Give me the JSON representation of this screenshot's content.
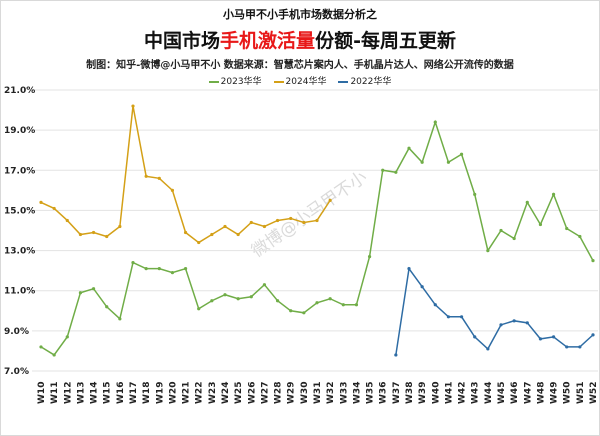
{
  "header": {
    "subtitle_top": "小马甲不小手机市场数据分析之",
    "title_prefix": "中国市场",
    "title_highlight": "手机激活量",
    "title_suffix": "份额-每周五更新",
    "credit": "制图：知乎-微博@小马甲不小  数据来源：智慧芯片案内人、手机晶片达人、网络公开流传的数据"
  },
  "watermark": "微博@小马甲不小",
  "chart_data": {
    "type": "line",
    "title": "中国市场手机激活量份额-每周五更新",
    "legend_position": "top",
    "grid": true,
    "ylim": [
      7.0,
      21.0
    ],
    "yticks": [
      "21.0%",
      "19.0%",
      "17.0%",
      "15.0%",
      "13.0%",
      "11.0%",
      "9.0%",
      "7.0%"
    ],
    "categories": [
      "W10",
      "W11",
      "W12",
      "W13",
      "W14",
      "W15",
      "W16",
      "W17",
      "W18",
      "W19",
      "W20",
      "W21",
      "W22",
      "W23",
      "W24",
      "W25",
      "W26",
      "W27",
      "W28",
      "W29",
      "W30",
      "W31",
      "W32",
      "W33",
      "W34",
      "W35",
      "W36",
      "W37",
      "W38",
      "W39",
      "W40",
      "W41",
      "W42",
      "W43",
      "W44",
      "W45",
      "W46",
      "W47",
      "W48",
      "W49",
      "W50",
      "W51",
      "W52"
    ],
    "series": [
      {
        "name": "2023华华",
        "color": "#70ad47",
        "values": [
          8.2,
          7.8,
          8.7,
          10.9,
          11.1,
          10.2,
          9.6,
          12.4,
          12.1,
          12.1,
          11.9,
          12.1,
          10.1,
          10.5,
          10.8,
          10.6,
          10.7,
          11.3,
          10.5,
          10.0,
          9.9,
          10.4,
          10.6,
          10.3,
          10.3,
          12.7,
          17.0,
          16.9,
          18.1,
          17.4,
          19.4,
          17.4,
          17.8,
          15.8,
          13.0,
          14.0,
          13.6,
          15.4,
          14.3,
          15.8,
          14.1,
          13.7,
          12.5
        ]
      },
      {
        "name": "2024华华",
        "color": "#d4a017",
        "values": [
          15.4,
          15.1,
          14.5,
          13.8,
          13.9,
          13.7,
          14.2,
          20.2,
          16.7,
          16.6,
          16.0,
          13.9,
          13.4,
          13.8,
          14.2,
          13.8,
          14.4,
          14.2,
          14.5,
          14.6,
          14.4,
          14.5,
          15.5,
          null,
          null,
          null,
          null,
          null,
          null,
          null,
          null,
          null,
          null,
          null,
          null,
          null,
          null,
          null,
          null,
          null,
          null,
          null,
          null
        ]
      },
      {
        "name": "2022华华",
        "color": "#2e6ca4",
        "values": [
          null,
          null,
          null,
          null,
          null,
          null,
          null,
          null,
          null,
          null,
          null,
          null,
          null,
          null,
          null,
          null,
          null,
          null,
          null,
          null,
          null,
          null,
          null,
          null,
          null,
          null,
          null,
          7.8,
          12.1,
          11.2,
          10.3,
          9.7,
          9.7,
          8.7,
          8.1,
          9.3,
          9.5,
          9.4,
          8.6,
          8.7,
          8.2,
          8.2,
          8.8
        ]
      }
    ]
  }
}
